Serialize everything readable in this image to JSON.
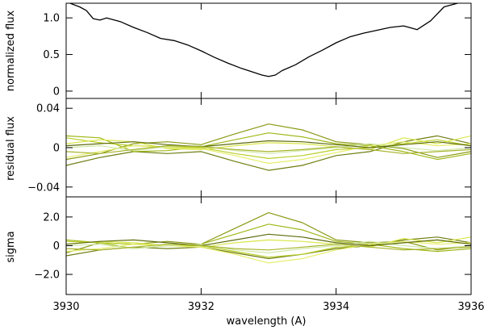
{
  "chart_data": [
    {
      "type": "line",
      "panel": "top",
      "ylabel": "normalized flux",
      "xlim": [
        3930,
        3936
      ],
      "ylim": [
        -0.1,
        1.2
      ],
      "yticks": [
        0,
        0.5,
        1.0
      ],
      "ytick_labels": [
        "0",
        "0.5",
        "1.0"
      ],
      "series": [
        {
          "color": "#000000",
          "x": [
            3930.0,
            3930.2,
            3930.3,
            3930.4,
            3930.5,
            3930.6,
            3930.8,
            3931.0,
            3931.2,
            3931.4,
            3931.6,
            3931.8,
            3932.0,
            3932.2,
            3932.4,
            3932.6,
            3932.8,
            3932.9,
            3933.0,
            3933.1,
            3933.2,
            3933.4,
            3933.6,
            3933.8,
            3934.0,
            3934.2,
            3934.4,
            3934.6,
            3934.8,
            3935.0,
            3935.2,
            3935.4,
            3935.6,
            3935.8
          ],
          "y": [
            1.22,
            1.15,
            1.1,
            0.99,
            0.97,
            1.0,
            0.95,
            0.87,
            0.8,
            0.72,
            0.69,
            0.63,
            0.55,
            0.46,
            0.38,
            0.31,
            0.25,
            0.22,
            0.2,
            0.22,
            0.28,
            0.36,
            0.47,
            0.56,
            0.66,
            0.74,
            0.79,
            0.83,
            0.87,
            0.89,
            0.84,
            0.96,
            1.15,
            1.2
          ]
        }
      ]
    },
    {
      "type": "line",
      "panel": "middle",
      "ylabel": "residual flux",
      "xlim": [
        3930,
        3936
      ],
      "ylim": [
        -0.05,
        0.05
      ],
      "yticks": [
        -0.04,
        0,
        0.04
      ],
      "ytick_labels": [
        "−0.04",
        "0",
        "0.04"
      ],
      "x": [
        3930.0,
        3930.5,
        3931.0,
        3931.5,
        3932.0,
        3932.5,
        3933.0,
        3933.5,
        3934.0,
        3934.5,
        3935.0,
        3935.5,
        3936.0
      ],
      "series": [
        {
          "color": "#8a9a14",
          "values": [
            -0.012,
            -0.006,
            0.004,
            0.006,
            0.003,
            0.014,
            0.024,
            0.018,
            0.006,
            0.003,
            -0.001,
            -0.01,
            -0.004
          ]
        },
        {
          "color": "#6f7d10",
          "values": [
            -0.018,
            -0.01,
            -0.004,
            -0.006,
            -0.004,
            -0.014,
            -0.023,
            -0.018,
            -0.008,
            -0.004,
            0.006,
            0.012,
            0.004
          ]
        },
        {
          "color": "#a0b818",
          "values": [
            0.012,
            0.01,
            -0.004,
            -0.003,
            0.001,
            0.008,
            0.015,
            0.011,
            0.004,
            0.002,
            -0.004,
            -0.012,
            -0.006
          ]
        },
        {
          "color": "#b9cf2a",
          "values": [
            0.01,
            0.005,
            0.002,
            0.001,
            0.0,
            -0.006,
            -0.011,
            -0.008,
            -0.002,
            0.0,
            0.004,
            0.008,
            0.002
          ]
        },
        {
          "color": "#d9e64a",
          "values": [
            0.004,
            0.008,
            0.006,
            -0.001,
            -0.002,
            0.002,
            0.005,
            0.004,
            0.001,
            -0.002,
            0.01,
            0.004,
            0.012
          ]
        },
        {
          "color": "#e6ee6e",
          "values": [
            -0.01,
            -0.004,
            0.002,
            0.0,
            -0.001,
            -0.008,
            -0.016,
            -0.012,
            -0.005,
            0.002,
            0.006,
            0.002,
            0.004
          ]
        },
        {
          "color": "#cfe8a8",
          "values": [
            0.0,
            0.002,
            -0.003,
            0.001,
            0.002,
            -0.003,
            -0.006,
            -0.003,
            0.0,
            0.004,
            0.0,
            -0.003,
            0.0
          ]
        },
        {
          "color": "#5e6c0c",
          "values": [
            0.002,
            0.004,
            0.006,
            0.003,
            0.001,
            0.004,
            0.007,
            0.006,
            0.003,
            0.0,
            0.003,
            0.006,
            0.002
          ]
        },
        {
          "color": "#a9b42e",
          "values": [
            -0.004,
            -0.006,
            -0.002,
            0.002,
            0.001,
            -0.002,
            -0.004,
            -0.002,
            0.001,
            -0.002,
            -0.006,
            -0.004,
            -0.002
          ]
        }
      ]
    },
    {
      "type": "line",
      "panel": "bottom",
      "ylabel": "sigma",
      "xlabel": "wavelength (A)",
      "xlim": [
        3930,
        3936
      ],
      "ylim": [
        -3.4,
        3.4
      ],
      "yticks": [
        -2.0,
        0,
        2.0
      ],
      "ytick_labels": [
        "−2.0",
        "0",
        "2.0"
      ],
      "xticks": [
        3930,
        3932,
        3934,
        3936
      ],
      "xtick_labels": [
        "3930",
        "3932",
        "3934",
        "3936"
      ],
      "x": [
        3930.0,
        3930.5,
        3931.0,
        3931.5,
        3932.0,
        3932.5,
        3933.0,
        3933.5,
        3934.0,
        3934.5,
        3935.0,
        3935.5,
        3936.0
      ],
      "series": [
        {
          "color": "#8a9a14",
          "values": [
            -0.5,
            0.2,
            0.1,
            0.3,
            0.1,
            1.2,
            2.3,
            1.6,
            0.4,
            0.2,
            0.3,
            -0.3,
            0.0
          ]
        },
        {
          "color": "#6f7d10",
          "values": [
            -0.7,
            -0.3,
            -0.1,
            -0.2,
            -0.1,
            -0.5,
            -0.9,
            -0.6,
            -0.2,
            0.0,
            0.4,
            0.6,
            0.2
          ]
        },
        {
          "color": "#a0b818",
          "values": [
            0.4,
            0.2,
            -0.2,
            0.0,
            0.1,
            0.8,
            1.5,
            1.1,
            0.3,
            0.1,
            -0.2,
            -0.4,
            -0.2
          ]
        },
        {
          "color": "#b9cf2a",
          "values": [
            0.3,
            0.2,
            0.1,
            0.0,
            0.0,
            -0.4,
            -0.8,
            -0.6,
            -0.1,
            0.0,
            0.2,
            0.4,
            0.1
          ]
        },
        {
          "color": "#d9e64a",
          "values": [
            0.1,
            0.3,
            0.2,
            0.0,
            -0.1,
            0.2,
            0.4,
            0.3,
            0.1,
            -0.1,
            0.5,
            0.2,
            0.6
          ]
        },
        {
          "color": "#e6ee6e",
          "values": [
            -0.4,
            -0.2,
            0.1,
            0.0,
            -0.1,
            -0.6,
            -1.2,
            -0.9,
            -0.3,
            0.1,
            0.3,
            0.1,
            0.2
          ]
        },
        {
          "color": "#cfe8a8",
          "values": [
            0.0,
            0.1,
            -0.2,
            0.0,
            0.1,
            -0.3,
            -0.5,
            -0.2,
            0.0,
            0.3,
            0.0,
            -0.2,
            0.0
          ]
        },
        {
          "color": "#5e6c0c",
          "values": [
            0.1,
            0.3,
            0.4,
            0.2,
            0.0,
            0.4,
            0.8,
            0.6,
            0.2,
            0.0,
            0.2,
            0.4,
            0.1
          ]
        },
        {
          "color": "#a9b42e",
          "values": [
            -0.2,
            -0.3,
            -0.1,
            0.1,
            0.0,
            -0.2,
            -0.3,
            -0.1,
            0.1,
            -0.1,
            -0.3,
            -0.2,
            -0.1
          ]
        }
      ]
    }
  ]
}
